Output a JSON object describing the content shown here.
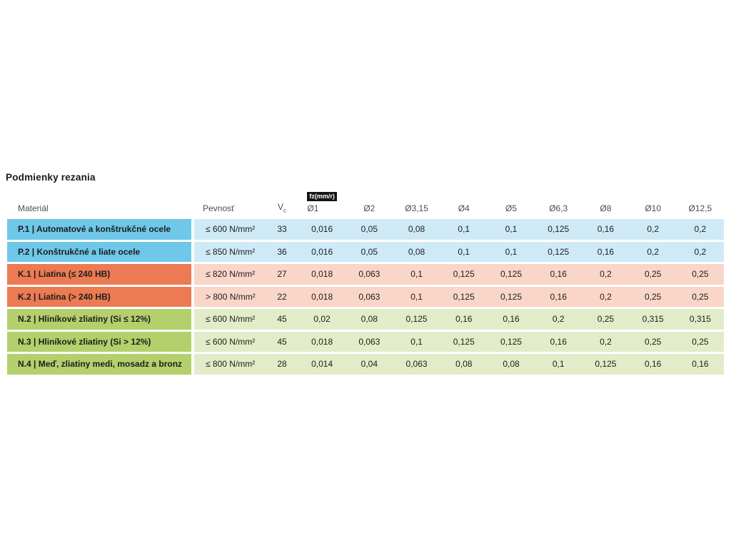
{
  "page": {
    "title": "Podmienky rezania"
  },
  "table": {
    "headers": {
      "material": "Materiál",
      "strength": "Pevnosť",
      "vc_base": "V",
      "vc_sub": "c",
      "fz_unit_badge": "fz(mm/r)",
      "diameters": [
        "Ø1",
        "Ø2",
        "Ø3,15",
        "Ø4",
        "Ø5",
        "Ø6,3",
        "Ø8",
        "Ø10",
        "Ø12,5"
      ]
    },
    "rows": [
      {
        "group": "steel",
        "material": "P.1 | Automatové a konštrukčné ocele",
        "strength": "≤ 600 N/mm²",
        "vc": "33",
        "fz": [
          "0,016",
          "0,05",
          "0,08",
          "0,1",
          "0,1",
          "0,125",
          "0,16",
          "0,2",
          "0,2"
        ]
      },
      {
        "group": "steel",
        "material": "P.2 | Konštrukčné a liate ocele",
        "strength": "≤ 850 N/mm²",
        "vc": "36",
        "fz": [
          "0,016",
          "0,05",
          "0,08",
          "0,1",
          "0,1",
          "0,125",
          "0,16",
          "0,2",
          "0,2"
        ]
      },
      {
        "group": "cast-iron",
        "material": "K.1 | Liatina (≤ 240 HB)",
        "strength": "≤ 820 N/mm²",
        "vc": "27",
        "fz": [
          "0,018",
          "0,063",
          "0,1",
          "0,125",
          "0,125",
          "0,16",
          "0,2",
          "0,25",
          "0,25"
        ]
      },
      {
        "group": "cast-iron",
        "material": "K.2 | Liatina (> 240 HB)",
        "strength": "> 800 N/mm²",
        "vc": "22",
        "fz": [
          "0,018",
          "0,063",
          "0,1",
          "0,125",
          "0,125",
          "0,16",
          "0,2",
          "0,25",
          "0,25"
        ]
      },
      {
        "group": "aluminium",
        "material": "N.2 | Hliníkové zliatiny (Si ≤ 12%)",
        "strength": "≤ 600 N/mm²",
        "vc": "45",
        "fz": [
          "0,02",
          "0,08",
          "0,125",
          "0,16",
          "0,16",
          "0,2",
          "0,25",
          "0,315",
          "0,315"
        ]
      },
      {
        "group": "aluminium",
        "material": "N.3 | Hliníkové zliatiny (Si > 12%)",
        "strength": "≤ 600 N/mm²",
        "vc": "45",
        "fz": [
          "0,018",
          "0,063",
          "0,1",
          "0,125",
          "0,125",
          "0,16",
          "0,2",
          "0,25",
          "0,25"
        ]
      },
      {
        "group": "aluminium",
        "material": "N.4 | Meď, zliatiny medi, mosadz a bronz",
        "strength": "≤ 800 N/mm²",
        "vc": "28",
        "fz": [
          "0,014",
          "0,04",
          "0,063",
          "0,08",
          "0,08",
          "0,1",
          "0,125",
          "0,16",
          "0,16"
        ]
      }
    ]
  },
  "colors": {
    "steel_label": "#6FC7E9",
    "steel_row": "#CFEAF7",
    "cast_iron_label": "#EC7A52",
    "cast_iron_row": "#F9D6C8",
    "aluminium_label": "#B3D06C",
    "aluminium_row": "#E2ECC8",
    "badge_bg": "#151514",
    "badge_text": "#FFFFFF",
    "header_text": "#4D4D4C",
    "body_text": "#1D1D1B"
  }
}
